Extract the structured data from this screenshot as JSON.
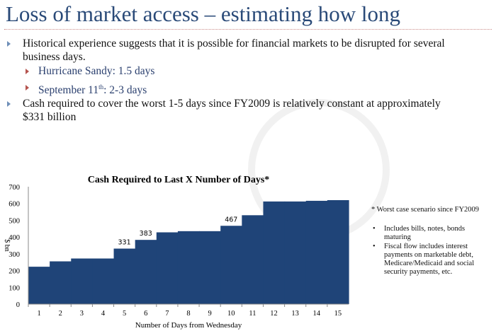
{
  "title": "Loss of market access – estimating how long",
  "bullets": [
    {
      "text_line1": "Historical experience suggests that it is possible for financial markets to be disrupted for several",
      "text_line2": "business days."
    },
    {
      "sub": [
        "Hurricane Sandy: 1.5 days"
      ]
    },
    {
      "sub_prefix": "September 11",
      "sub_sup": "th",
      "sub_suffix": ": 2-3 days"
    },
    {
      "text_line1": "Cash required to cover the worst 1-5 days since FY2009 is relatively constant at approximately",
      "text_line2": "$331 billion"
    }
  ],
  "notes": {
    "asterisk": "* Worst case scenario since FY2009",
    "items": [
      "Includes bills, notes, bonds maturing",
      "Fiscal flow includes interest payments on marketable debt, Medicare/Medicaid and social security payments, etc."
    ]
  },
  "chart_data": {
    "type": "area",
    "title": "Cash Required to Last X Number of Days*",
    "xlabel": "Number of Days from Wednesday",
    "ylabel": "$ bn",
    "categories": [
      "1",
      "2",
      "3",
      "4",
      "5",
      "6",
      "7",
      "8",
      "9",
      "10",
      "11",
      "12",
      "13",
      "14",
      "15"
    ],
    "values": [
      223,
      255,
      272,
      272,
      331,
      383,
      428,
      435,
      435,
      467,
      530,
      612,
      612,
      616,
      620
    ],
    "data_labels": {
      "5": "331",
      "6": "383",
      "10": "467"
    },
    "ylim": [
      0,
      700
    ],
    "yticks": [
      "0",
      "100",
      "200",
      "300",
      "400",
      "500",
      "600",
      "700"
    ],
    "color": "#1f4478",
    "style": "step",
    "grid": false
  }
}
